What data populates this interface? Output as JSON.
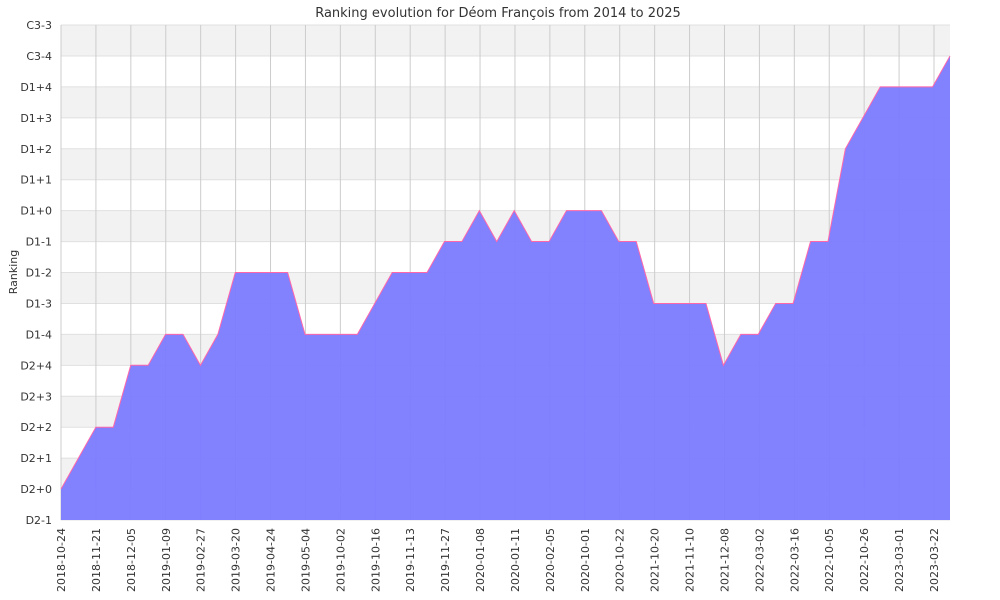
{
  "chart_data": {
    "type": "area",
    "title": "Ranking evolution for Déom François from 2014 to 2025",
    "xlabel": "",
    "ylabel": "Ranking",
    "y_levels": [
      "D2-1",
      "D2+0",
      "D2+1",
      "D2+2",
      "D2+3",
      "D2+4",
      "D1-4",
      "D1-3",
      "D1-2",
      "D1-1",
      "D1+0",
      "D1+1",
      "D1+2",
      "D1+3",
      "D1+4",
      "C3-4",
      "C3-3"
    ],
    "x_tick_labels": [
      "2018-10-24",
      "2018-11-21",
      "2018-12-05",
      "2019-01-09",
      "2019-02-27",
      "2019-03-20",
      "2019-04-24",
      "2019-05-04",
      "2019-10-02",
      "2019-10-16",
      "2019-11-13",
      "2019-11-27",
      "2020-01-08",
      "2020-01-11",
      "2020-02-05",
      "2020-10-01",
      "2020-10-22",
      "2021-10-20",
      "2021-11-10",
      "2021-12-08",
      "2022-03-02",
      "2022-03-16",
      "2022-10-05",
      "2022-10-26",
      "2023-03-01",
      "2023-03-22"
    ],
    "series": [
      {
        "values": [
          "D2+0",
          "D2+1",
          "D2+2",
          "D2+2",
          "D2+4",
          "D2+4",
          "D1-4",
          "D1-4",
          "D2+4",
          "D1-4",
          "D1-2",
          "D1-2",
          "D1-2",
          "D1-2",
          "D1-4",
          "D1-4",
          "D1-4",
          "D1-4",
          "D1-3",
          "D1-2",
          "D1-2",
          "D1-2",
          "D1-1",
          "D1-1",
          "D1+0",
          "D1-1",
          "D1+0",
          "D1-1",
          "D1-1",
          "D1+0",
          "D1+0",
          "D1+0",
          "D1-1",
          "D1-1",
          "D1-3",
          "D1-3",
          "D1-3",
          "D1-3",
          "D2+4",
          "D1-4",
          "D1-4",
          "D1-3",
          "D1-3",
          "D1-1",
          "D1-1",
          "D1+2",
          "D1+3",
          "D1+4",
          "D1+4",
          "D1+4",
          "D1+4",
          "C3-4"
        ]
      }
    ],
    "grid": true,
    "fill_color": "#7b7bff",
    "line_color": "#ff66aa",
    "band_color": "#f2f2f2",
    "grid_color": "#cccccc"
  }
}
